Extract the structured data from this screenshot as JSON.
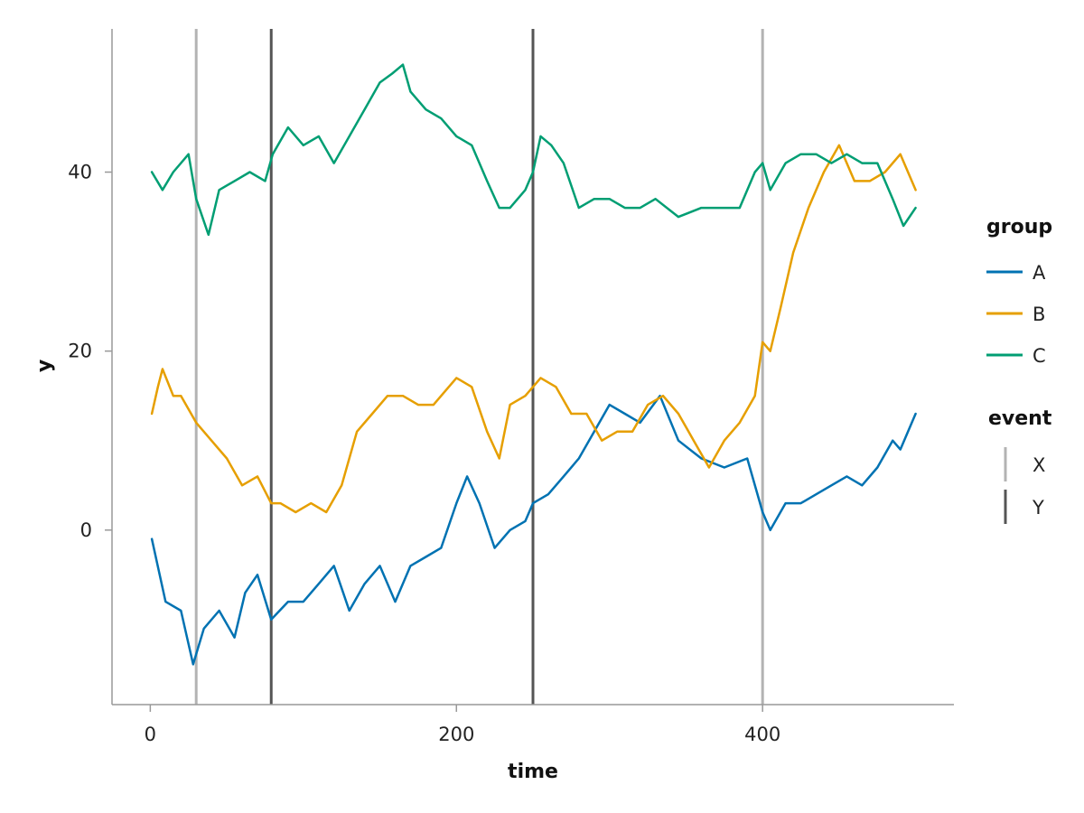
{
  "chart_data": {
    "type": "line",
    "xlabel": "time",
    "ylabel": "y",
    "xlim": [
      -25,
      525
    ],
    "ylim": [
      -19.5,
      56
    ],
    "xticks": [
      0,
      200,
      400
    ],
    "yticks": [
      0,
      20,
      40
    ],
    "grid": false,
    "legend_placement": "right",
    "colors": {
      "A": "#0072b2",
      "B": "#e69f00",
      "C": "#009e73",
      "X": "#b3b3b3",
      "Y": "#555555",
      "axis": "#999999"
    },
    "legends": [
      {
        "title": "group",
        "entries": [
          "A",
          "B",
          "C"
        ],
        "kind": "line"
      },
      {
        "title": "event",
        "entries": [
          "X",
          "Y"
        ],
        "kind": "vline"
      }
    ],
    "events": [
      {
        "name": "X",
        "x": 30
      },
      {
        "name": "Y",
        "x": 79
      },
      {
        "name": "Y",
        "x": 250
      },
      {
        "name": "X",
        "x": 400
      }
    ],
    "series": [
      {
        "name": "A",
        "x": [
          1,
          10,
          20,
          28,
          35,
          45,
          55,
          62,
          70,
          79,
          90,
          100,
          110,
          120,
          130,
          140,
          150,
          160,
          170,
          180,
          190,
          200,
          207,
          215,
          225,
          235,
          245,
          250,
          260,
          270,
          280,
          290,
          300,
          310,
          320,
          333,
          345,
          360,
          375,
          390,
          400,
          405,
          415,
          425,
          435,
          445,
          455,
          465,
          475,
          485,
          490,
          500
        ],
        "y": [
          -1,
          -8,
          -9,
          -15,
          -11,
          -9,
          -12,
          -7,
          -5,
          -10,
          -8,
          -8,
          -6,
          -4,
          -9,
          -6,
          -4,
          -8,
          -4,
          -3,
          -2,
          3,
          6,
          3,
          -2,
          0,
          1,
          3,
          4,
          6,
          8,
          11,
          14,
          13,
          12,
          15,
          10,
          8,
          7,
          8,
          2,
          0,
          3,
          3,
          4,
          5,
          6,
          5,
          7,
          10,
          9,
          13
        ]
      },
      {
        "name": "B",
        "x": [
          1,
          5,
          8,
          15,
          20,
          30,
          40,
          50,
          60,
          70,
          79,
          85,
          95,
          105,
          115,
          125,
          135,
          145,
          155,
          165,
          175,
          185,
          195,
          200,
          210,
          220,
          228,
          235,
          245,
          255,
          265,
          275,
          285,
          295,
          305,
          315,
          325,
          335,
          345,
          355,
          365,
          375,
          385,
          395,
          400,
          405,
          412,
          420,
          430,
          440,
          450,
          460,
          470,
          480,
          490,
          500
        ],
        "y": [
          13,
          16,
          18,
          15,
          15,
          12,
          10,
          8,
          5,
          6,
          3,
          3,
          2,
          3,
          2,
          5,
          11,
          13,
          15,
          15,
          14,
          14,
          16,
          17,
          16,
          11,
          8,
          14,
          15,
          17,
          16,
          13,
          13,
          10,
          11,
          11,
          14,
          15,
          13,
          10,
          7,
          10,
          12,
          15,
          21,
          20,
          25,
          31,
          36,
          40,
          43,
          39,
          39,
          40,
          42,
          38
        ]
      },
      {
        "name": "C",
        "x": [
          1,
          8,
          15,
          25,
          30,
          38,
          45,
          55,
          65,
          75,
          80,
          90,
          100,
          110,
          120,
          130,
          140,
          150,
          158,
          165,
          170,
          180,
          190,
          200,
          210,
          220,
          228,
          235,
          245,
          250,
          255,
          262,
          270,
          280,
          290,
          300,
          310,
          320,
          330,
          345,
          360,
          375,
          385,
          395,
          400,
          405,
          415,
          425,
          435,
          445,
          455,
          465,
          475,
          485,
          492,
          500
        ],
        "y": [
          40,
          38,
          40,
          42,
          37,
          33,
          38,
          39,
          40,
          39,
          42,
          45,
          43,
          44,
          41,
          44,
          47,
          50,
          51,
          52,
          49,
          47,
          46,
          44,
          43,
          39,
          36,
          36,
          38,
          40,
          44,
          43,
          41,
          36,
          37,
          37,
          36,
          36,
          37,
          35,
          36,
          36,
          36,
          40,
          41,
          38,
          41,
          42,
          42,
          41,
          42,
          41,
          41,
          37,
          34,
          36
        ]
      }
    ]
  }
}
